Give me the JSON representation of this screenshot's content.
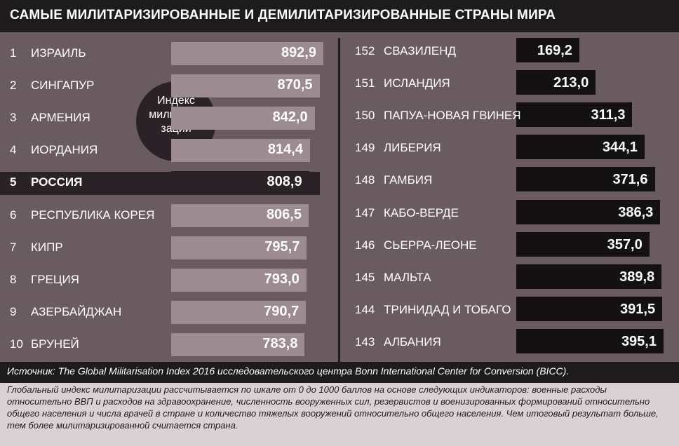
{
  "title": "САМЫЕ МИЛИТАРИЗИРОВАННЫЕ И ДЕМИЛИТАРИЗИРОВАННЫЕ СТРАНЫ МИРА",
  "badge": "Индекс милитари-зации",
  "source": "Источник:  The Global Militarisation Index 2016 исследовательского центра Bonn International Center for Conversion (BICC).",
  "note": "Глобальный индекс милитаризации рассчитывается по шкале от 0 до 1000 баллов на основе следующих индикаторов: военные расходы относительно ВВП и расходов на здравоохранение, численность вооруженных сил, резервистов и военизированных формирований относительно общего населения и числа врачей в стране и количество тяжелых вооружений относительно общего населения. Чем итоговый результат больше, тем более милитаризированной считается страна.",
  "colors": {
    "panel": "#6a5b60",
    "left_bar": "#9c8c91",
    "highlight": "#2a2226",
    "right_bar": "#141112",
    "title_bar": "#1e1b1c",
    "note_bg": "#d9d1d3"
  },
  "chart_data": [
    {
      "type": "bar",
      "orientation": "horizontal",
      "categories": [
        "ИЗРАИЛЬ",
        "СИНГАПУР",
        "АРМЕНИЯ",
        "ИОРДАНИЯ",
        "РОССИЯ",
        "РЕСПУБЛИКА КОРЕЯ",
        "КИПР",
        "ГРЕЦИЯ",
        "АЗЕРБАЙДЖАН",
        "БРУНЕЙ"
      ],
      "ranks": [
        "1",
        "2",
        "3",
        "4",
        "5",
        "6",
        "7",
        "8",
        "9",
        "10"
      ],
      "values": [
        892.9,
        870.5,
        842.0,
        814.4,
        808.9,
        806.5,
        795.7,
        793.0,
        790.7,
        783.8
      ],
      "value_labels": [
        "892,9",
        "870,5",
        "842,0",
        "814,4",
        "808,9",
        "806,5",
        "795,7",
        "793,0",
        "790,7",
        "783,8"
      ],
      "highlight": "РОССИЯ"
    },
    {
      "type": "bar",
      "orientation": "horizontal",
      "categories": [
        "СВАЗИЛЕНД",
        "ИСЛАНДИЯ",
        "ПАПУА-НОВАЯ ГВИНЕЯ",
        "ЛИБЕРИЯ",
        "ГАМБИЯ",
        "КАБО-ВЕРДЕ",
        "СЬЕРРА-ЛЕОНЕ",
        "МАЛЬТА",
        "ТРИНИДАД И ТОБАГО",
        "АЛБАНИЯ"
      ],
      "ranks": [
        "152",
        "151",
        "150",
        "149",
        "148",
        "147",
        "146",
        "145",
        "144",
        "143"
      ],
      "values": [
        169.2,
        213.0,
        311.3,
        344.1,
        371.6,
        386.3,
        357.0,
        389.8,
        391.5,
        395.1
      ],
      "value_labels": [
        "169,2",
        "213,0",
        "311,3",
        "344,1",
        "371,6",
        "386,3",
        "357,0",
        "389,8",
        "391,5",
        "395,1"
      ]
    }
  ]
}
